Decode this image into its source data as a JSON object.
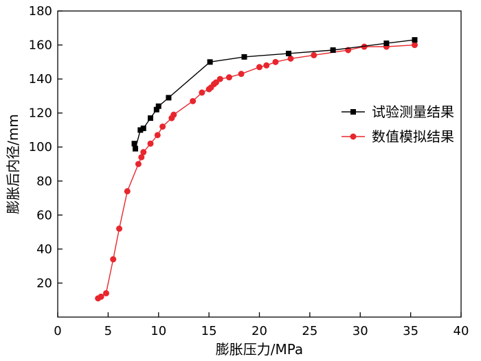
{
  "chart_data": {
    "type": "line",
    "xlabel": "膨胀压力/MPa",
    "ylabel": "膨胀后内径/mm",
    "xlim": [
      0,
      40
    ],
    "ylim": [
      0,
      180
    ],
    "x_ticks": [
      0,
      5,
      10,
      15,
      20,
      25,
      30,
      35,
      40
    ],
    "y_ticks": [
      20,
      40,
      60,
      80,
      100,
      120,
      140,
      160,
      180
    ],
    "grid": false,
    "legend_position": "right",
    "series": [
      {
        "name": "试验测量结果",
        "color": "#000000",
        "marker": "square",
        "points": [
          [
            7.6,
            102
          ],
          [
            7.7,
            99
          ],
          [
            8.2,
            110
          ],
          [
            8.5,
            111
          ],
          [
            9.2,
            117
          ],
          [
            9.8,
            122
          ],
          [
            10.0,
            124
          ],
          [
            11.0,
            129
          ],
          [
            15.1,
            150
          ],
          [
            18.5,
            153
          ],
          [
            22.9,
            155
          ],
          [
            27.3,
            157
          ],
          [
            32.6,
            161
          ],
          [
            35.4,
            163
          ]
        ]
      },
      {
        "name": "数值模拟结果",
        "color": "#e8262d",
        "marker": "circle",
        "points": [
          [
            4.0,
            11
          ],
          [
            4.3,
            12
          ],
          [
            4.8,
            14
          ],
          [
            5.5,
            34
          ],
          [
            6.1,
            52
          ],
          [
            6.9,
            74
          ],
          [
            8.0,
            90
          ],
          [
            8.3,
            94
          ],
          [
            8.5,
            97
          ],
          [
            9.2,
            102
          ],
          [
            9.9,
            107
          ],
          [
            10.4,
            112
          ],
          [
            11.3,
            117
          ],
          [
            11.5,
            119
          ],
          [
            13.4,
            127
          ],
          [
            14.3,
            132
          ],
          [
            15.0,
            134
          ],
          [
            15.2,
            135
          ],
          [
            15.5,
            137
          ],
          [
            15.7,
            138
          ],
          [
            16.1,
            140
          ],
          [
            17.0,
            141
          ],
          [
            18.2,
            143
          ],
          [
            20.0,
            147
          ],
          [
            20.7,
            148
          ],
          [
            21.6,
            150
          ],
          [
            23.1,
            152
          ],
          [
            25.4,
            154
          ],
          [
            28.8,
            157
          ],
          [
            30.4,
            159
          ],
          [
            32.6,
            159
          ],
          [
            35.4,
            160
          ]
        ]
      }
    ]
  }
}
